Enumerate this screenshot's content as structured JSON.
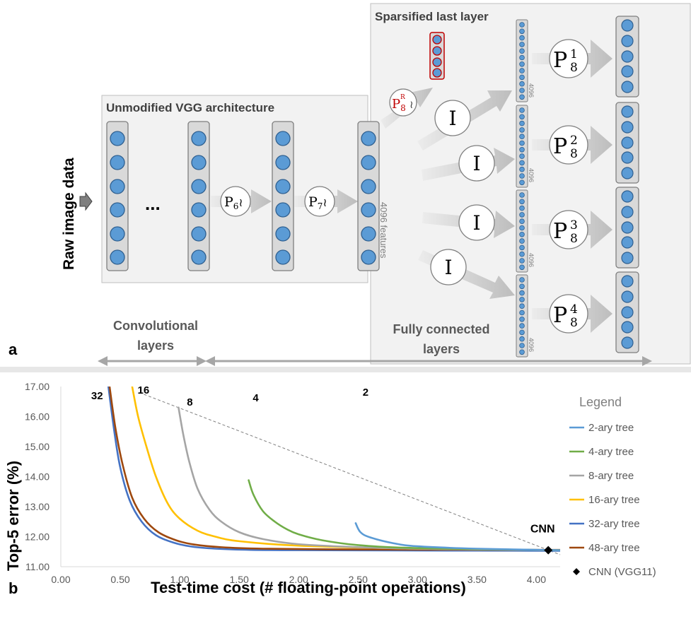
{
  "panel_a": {
    "panel_label": "a",
    "input_label": "Raw image data",
    "vgg_box_title": "Unmodified VGG architecture",
    "ellipsis": "...",
    "sparse_box_title": "Sparsified last layer",
    "features_label": "4096 features",
    "layer_size_label": "4096",
    "conv_label_line1": "Convolutional",
    "conv_label_line2": "layers",
    "fc_label_line1": "Fully connected",
    "fc_label_line2": "layers",
    "operators": {
      "p6_main": "P",
      "p6_sub": "6",
      "tilde": "≀",
      "p7_main": "P",
      "p7_sub": "7",
      "pr_main": "P",
      "pr_sub": "8",
      "pr_sup": "R",
      "identity": "I",
      "p8_main": "P",
      "p8_sub": "8",
      "p8_sup": [
        "1",
        "2",
        "3",
        "4"
      ]
    },
    "colors": {
      "neuron": "#5b9bd5",
      "column": "#d9d9d9",
      "highlight": "#c00000",
      "arrow": "#bfbfbf"
    }
  },
  "panel_b": {
    "panel_label": "b",
    "chart_data": {
      "type": "line",
      "xlabel": "Test-time cost (# floating-point operations)",
      "ylabel": "Top-5 error (%)",
      "xlim": [
        0,
        4.2
      ],
      "ylim": [
        11,
        17
      ],
      "x_ticks": [
        "0.00",
        "0.50",
        "1.00",
        "1.50",
        "2.00",
        "2.50",
        "3.00",
        "3.50",
        "4.00"
      ],
      "y_ticks": [
        "11.00",
        "12.00",
        "13.00",
        "14.00",
        "15.00",
        "16.00",
        "17.00"
      ],
      "legend_title": "Legend",
      "series": [
        {
          "name": "2-ary tree",
          "annotation": "2",
          "color": "#5b9bd5",
          "points": [
            [
              2.48,
              12.45
            ],
            [
              2.52,
              12.15
            ],
            [
              2.6,
              11.98
            ],
            [
              2.8,
              11.78
            ],
            [
              3.0,
              11.68
            ],
            [
              3.5,
              11.6
            ],
            [
              4.2,
              11.55
            ]
          ]
        },
        {
          "name": "4-ary tree",
          "annotation": "4",
          "color": "#70ad47",
          "points": [
            [
              1.58,
              13.88
            ],
            [
              1.62,
              13.4
            ],
            [
              1.7,
              12.85
            ],
            [
              1.8,
              12.5
            ],
            [
              1.9,
              12.25
            ],
            [
              2.0,
              12.08
            ],
            [
              2.2,
              11.88
            ],
            [
              2.5,
              11.72
            ],
            [
              3.0,
              11.62
            ],
            [
              4.2,
              11.55
            ]
          ]
        },
        {
          "name": "8-ary tree",
          "annotation": "8",
          "color": "#a5a5a5",
          "points": [
            [
              0.99,
              16.3
            ],
            [
              1.03,
              15.4
            ],
            [
              1.08,
              14.5
            ],
            [
              1.15,
              13.6
            ],
            [
              1.25,
              12.9
            ],
            [
              1.35,
              12.5
            ],
            [
              1.5,
              12.15
            ],
            [
              1.7,
              11.92
            ],
            [
              2.0,
              11.75
            ],
            [
              2.5,
              11.65
            ],
            [
              3.0,
              11.6
            ],
            [
              4.2,
              11.55
            ]
          ]
        },
        {
          "name": "16-ary tree",
          "annotation": "16",
          "color": "#ffc000",
          "points": [
            [
              0.6,
              17.0
            ],
            [
              0.65,
              16.0
            ],
            [
              0.72,
              15.0
            ],
            [
              0.8,
              14.0
            ],
            [
              0.9,
              13.1
            ],
            [
              1.0,
              12.6
            ],
            [
              1.15,
              12.2
            ],
            [
              1.3,
              12.0
            ],
            [
              1.5,
              11.85
            ],
            [
              2.0,
              11.7
            ],
            [
              3.0,
              11.6
            ],
            [
              4.2,
              11.55
            ]
          ]
        },
        {
          "name": "32-ary tree",
          "annotation": "32",
          "color": "#4472c4",
          "points": [
            [
              0.4,
              17.0
            ],
            [
              0.45,
              15.5
            ],
            [
              0.5,
              14.3
            ],
            [
              0.58,
              13.2
            ],
            [
              0.68,
              12.5
            ],
            [
              0.8,
              12.05
            ],
            [
              0.95,
              11.8
            ],
            [
              1.1,
              11.67
            ],
            [
              1.3,
              11.6
            ],
            [
              1.6,
              11.56
            ],
            [
              2.0,
              11.55
            ],
            [
              3.0,
              11.54
            ],
            [
              4.2,
              11.53
            ]
          ]
        },
        {
          "name": "48-ary tree",
          "annotation": "",
          "color": "#9e480e",
          "points": [
            [
              0.41,
              17.0
            ],
            [
              0.46,
              15.6
            ],
            [
              0.52,
              14.4
            ],
            [
              0.6,
              13.3
            ],
            [
              0.7,
              12.6
            ],
            [
              0.82,
              12.15
            ],
            [
              0.97,
              11.88
            ],
            [
              1.12,
              11.74
            ],
            [
              1.35,
              11.65
            ],
            [
              1.7,
              11.6
            ],
            [
              2.2,
              11.58
            ],
            [
              3.0,
              11.57
            ],
            [
              4.2,
              11.56
            ]
          ]
        }
      ],
      "reference_point": {
        "name": "CNN (VGG11)",
        "annotation": "CNN",
        "x": 4.1,
        "y": 11.55
      },
      "dashed_line": [
        [
          0.66,
          16.8
        ],
        [
          4.2,
          11.4
        ]
      ]
    }
  }
}
